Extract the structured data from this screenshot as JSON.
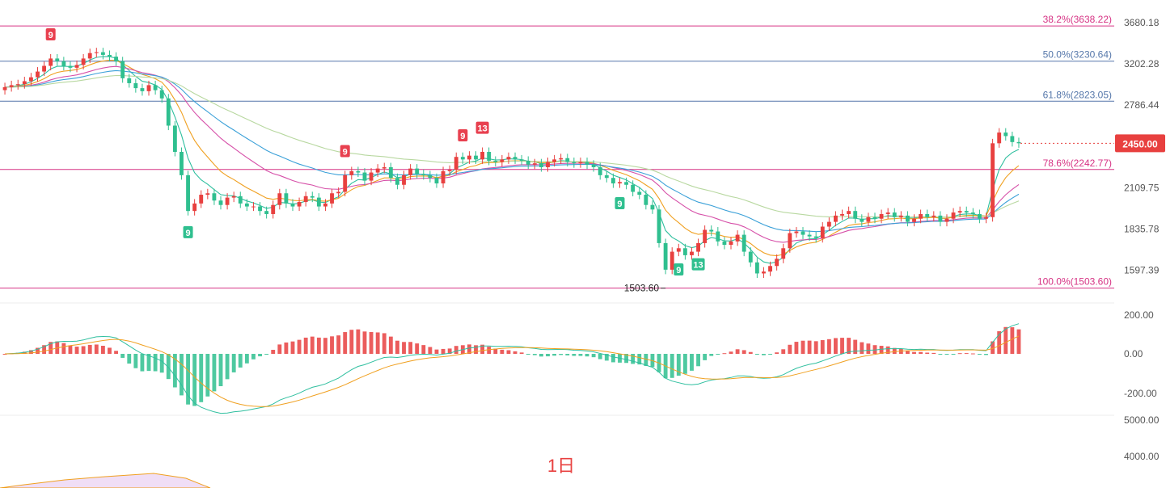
{
  "chart_data": {
    "type": "candlestick",
    "price_axis": {
      "min": 1450,
      "max": 3760,
      "ticks": [
        "3680.18",
        "3202.28",
        "2786.44",
        "2109.75",
        "1835.78",
        "1597.39"
      ],
      "tick_values": [
        3680.18,
        3202.28,
        2786.44,
        2109.75,
        1835.78,
        1597.39
      ]
    },
    "current_price": {
      "label": "2450.00",
      "value": 2450.0,
      "color": "#e8403f"
    },
    "fib_levels": [
      {
        "label": "38.2%(3638.22)",
        "value": 3638.22,
        "color": "#d63384"
      },
      {
        "label": "50.0%(3230.64)",
        "value": 3230.64,
        "color": "#5577aa"
      },
      {
        "label": "61.8%(2823.05)",
        "value": 2823.05,
        "color": "#5577aa"
      },
      {
        "label": "78.6%(2242.77)",
        "value": 2242.77,
        "color": "#d63384"
      },
      {
        "label": "100.0%(1503.60)",
        "value": 1503.6,
        "color": "#d63384"
      }
    ],
    "low_marker": {
      "label": "1503.60",
      "value": 1503.6,
      "candle_index": 101
    },
    "td_markers": [
      {
        "label": "9",
        "candle": 7,
        "type": "sell"
      },
      {
        "label": "9",
        "candle": 52,
        "type": "sell"
      },
      {
        "label": "9",
        "candle": 70,
        "type": "sell"
      },
      {
        "label": "13",
        "candle": 73,
        "type": "sell"
      },
      {
        "label": "9",
        "candle": 28,
        "type": "buy"
      },
      {
        "label": "9",
        "candle": 94,
        "type": "buy"
      },
      {
        "label": "9",
        "candle": 103,
        "type": "buy"
      },
      {
        "label": "13",
        "candle": 106,
        "type": "buy"
      }
    ],
    "candles_close": [
      2960,
      2980,
      2990,
      3020,
      3060,
      3120,
      3180,
      3260,
      3230,
      3180,
      3160,
      3190,
      3260,
      3320,
      3330,
      3300,
      3280,
      3230,
      3050,
      3000,
      2950,
      2920,
      2980,
      2930,
      2850,
      2600,
      2380,
      2200,
      1950,
      2000,
      2060,
      2070,
      2020,
      1990,
      2040,
      2050,
      2000,
      1980,
      1980,
      1950,
      1930,
      1990,
      2070,
      2000,
      1980,
      2010,
      2050,
      2040,
      1980,
      2000,
      2070,
      2080,
      2200,
      2230,
      2220,
      2160,
      2220,
      2250,
      2260,
      2180,
      2130,
      2200,
      2250,
      2210,
      2200,
      2180,
      2140,
      2230,
      2240,
      2340,
      2320,
      2350,
      2320,
      2380,
      2310,
      2300,
      2320,
      2340,
      2320,
      2310,
      2280,
      2290,
      2260,
      2300,
      2320,
      2330,
      2300,
      2290,
      2300,
      2280,
      2260,
      2200,
      2180,
      2140,
      2150,
      2130,
      2080,
      2060,
      1990,
      1960,
      1750,
      1600,
      1700,
      1720,
      1680,
      1700,
      1750,
      1830,
      1820,
      1760,
      1740,
      1760,
      1800,
      1700,
      1640,
      1580,
      1590,
      1620,
      1660,
      1720,
      1810,
      1820,
      1800,
      1790,
      1780,
      1850,
      1880,
      1920,
      1930,
      1950,
      1900,
      1880,
      1910,
      1900,
      1930,
      1940,
      1910,
      1920,
      1880,
      1900,
      1930,
      1910,
      1920,
      1880,
      1900,
      1940,
      1950,
      1940,
      1930,
      1900,
      1910,
      2450,
      2540,
      2510,
      2460,
      2450
    ]
  },
  "macd": {
    "ticks": [
      "200.00",
      "0.00",
      "-200.00"
    ],
    "tick_values": [
      200,
      0,
      -200
    ]
  },
  "volume": {
    "ticks": [
      "5000.00",
      "4000.00"
    ]
  },
  "timeframe_label": "1日",
  "colors": {
    "up": "#e8403f",
    "down": "#2fbf8f",
    "ma_fast": "#2fbf9f",
    "ma_mid": "#f0a020",
    "ma_magenta": "#d64fa8",
    "ma_blue": "#3aa0d8",
    "ma_slow": "#b8d8a0"
  }
}
